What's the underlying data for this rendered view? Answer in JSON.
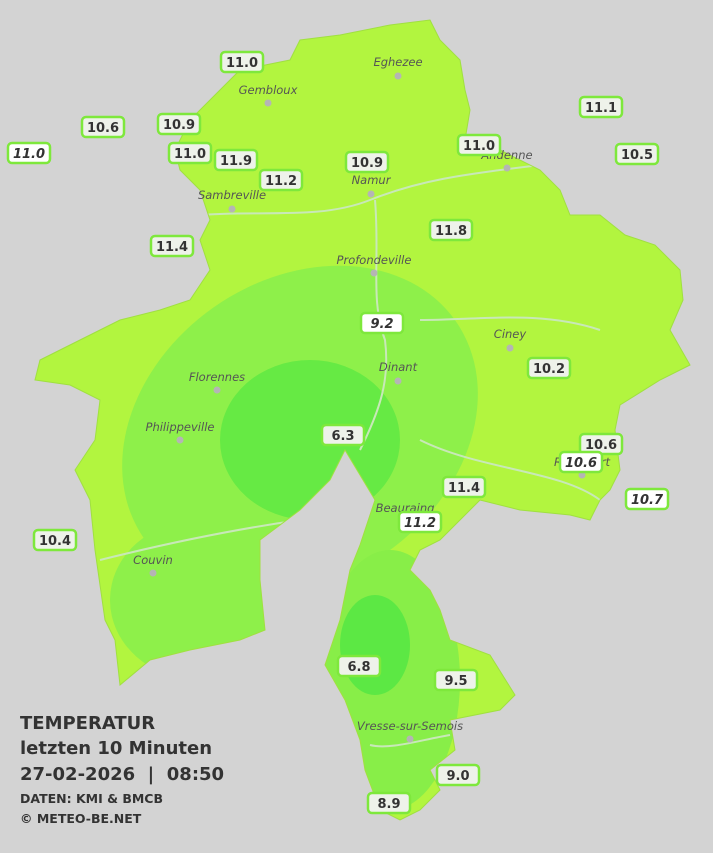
{
  "legend": {
    "title": "TEMPERATUR",
    "subtitle": "letzten 10 Minuten",
    "datetime": "27-02-2026  |  08:50",
    "source": "DATEN: KMI & BMCB",
    "copyright": "© METEO-BE.NET"
  },
  "places": [
    "Eghezee",
    "Gembloux",
    "Andenne",
    "Namur",
    "Sambreville",
    "Profondeville",
    "Ciney",
    "Dinant",
    "Florennes",
    "Philippeville",
    "Rochefort",
    "Beauraing",
    "Couvin",
    "Vresse-sur-Semois"
  ],
  "stations": [
    "11.0",
    "10.6",
    "10.9",
    "11.0",
    "11.0",
    "11.9",
    "11.2",
    "10.9",
    "11.0",
    "11.1",
    "10.5",
    "11.8",
    "11.4",
    "9.2",
    "10.2",
    "6.3",
    "10.6",
    "10.6",
    "10.7",
    "11.4",
    "11.2",
    "10.4",
    "6.8",
    "9.5",
    "9.0",
    "8.9"
  ]
}
